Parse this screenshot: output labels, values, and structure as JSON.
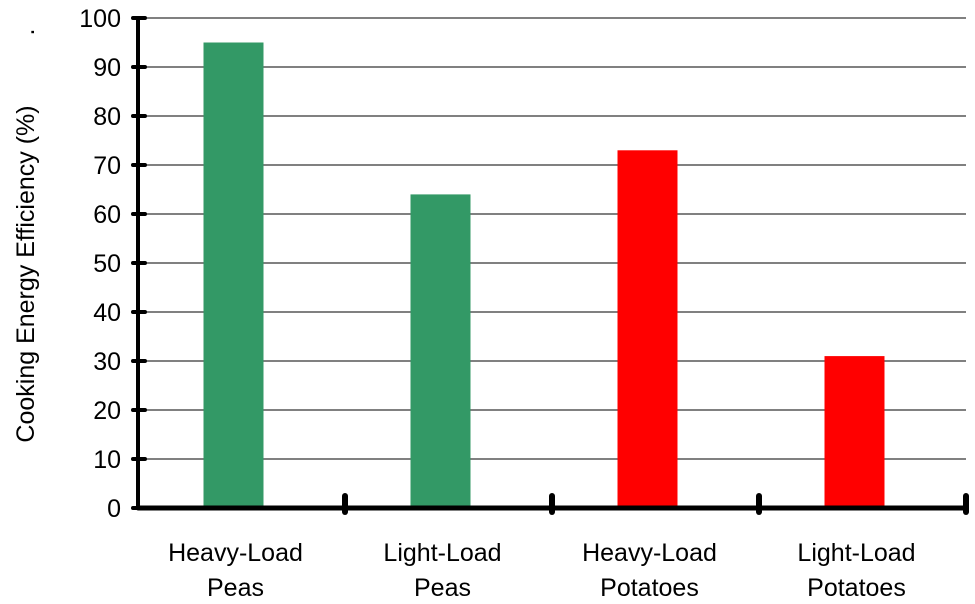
{
  "chart_data": {
    "type": "bar",
    "categories": [
      [
        "Heavy-Load",
        "Peas"
      ],
      [
        "Light-Load",
        "Peas"
      ],
      [
        "Heavy-Load",
        "Potatoes"
      ],
      [
        "Light-Load",
        "Potatoes"
      ]
    ],
    "values": [
      95,
      64,
      73,
      31
    ],
    "bar_colors": [
      "#339966",
      "#339966",
      "#ff0000",
      "#ff0000"
    ],
    "title": "",
    "xlabel": "",
    "ylabel": "Cooking Energy Efficiency (%)",
    "ylabel_suffix": ".",
    "ylim": [
      0,
      100
    ],
    "yticks": [
      0,
      10,
      20,
      30,
      40,
      50,
      60,
      70,
      80,
      90,
      100
    ],
    "grid": true
  }
}
